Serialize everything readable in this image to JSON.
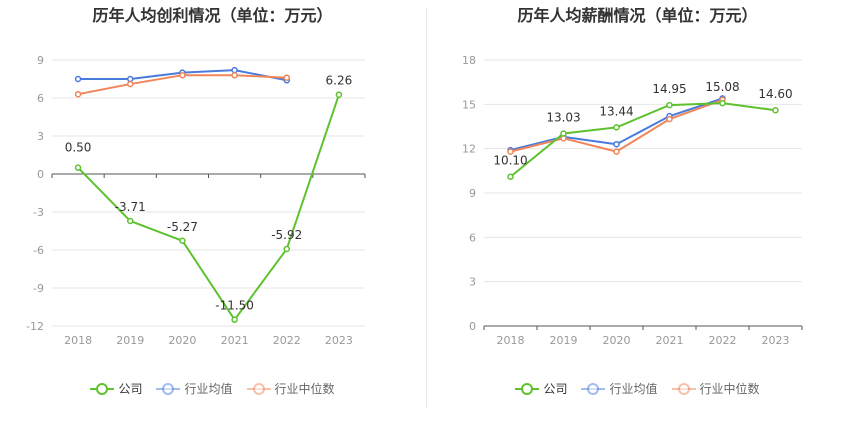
{
  "chart_data": [
    {
      "type": "line",
      "title": "历年人均创利情况（单位：万元）",
      "categories": [
        "2018",
        "2019",
        "2020",
        "2021",
        "2022",
        "2023"
      ],
      "ylim": [
        -12,
        9
      ],
      "yticks": [
        9,
        6,
        3,
        0,
        -3,
        -6,
        -9,
        -12
      ],
      "grid": true,
      "legend_position": "bottom",
      "series": [
        {
          "name": "公司",
          "color": "#5ec22f",
          "values": [
            0.5,
            -3.71,
            -5.27,
            -11.5,
            -5.92,
            6.26
          ],
          "labels": [
            "0.50",
            "-3.71",
            "-5.27",
            "-11.50",
            "-5.92",
            "6.26"
          ]
        },
        {
          "name": "行业均值",
          "color": "#4a7bdc",
          "values": [
            7.5,
            7.5,
            8.0,
            8.2,
            7.4,
            null
          ]
        },
        {
          "name": "行业中位数",
          "color": "#f0865a",
          "values": [
            6.3,
            7.1,
            7.8,
            7.8,
            7.6,
            null
          ]
        }
      ]
    },
    {
      "type": "line",
      "title": "历年人均薪酬情况（单位：万元）",
      "categories": [
        "2018",
        "2019",
        "2020",
        "2021",
        "2022",
        "2023"
      ],
      "ylim": [
        0,
        18
      ],
      "yticks": [
        18,
        15,
        12,
        9,
        6,
        3,
        0
      ],
      "grid": true,
      "legend_position": "bottom",
      "series": [
        {
          "name": "公司",
          "color": "#5ec22f",
          "values": [
            10.1,
            13.03,
            13.44,
            14.95,
            15.08,
            14.6
          ],
          "labels": [
            "10.10",
            "13.03",
            "13.44",
            "14.95",
            "15.08",
            "14.60"
          ]
        },
        {
          "name": "行业均值",
          "color": "#4a7bdc",
          "values": [
            11.9,
            12.8,
            12.3,
            14.2,
            15.4,
            null
          ]
        },
        {
          "name": "行业中位数",
          "color": "#f0865a",
          "values": [
            11.8,
            12.7,
            11.8,
            14.0,
            15.3,
            null
          ]
        }
      ]
    }
  ]
}
